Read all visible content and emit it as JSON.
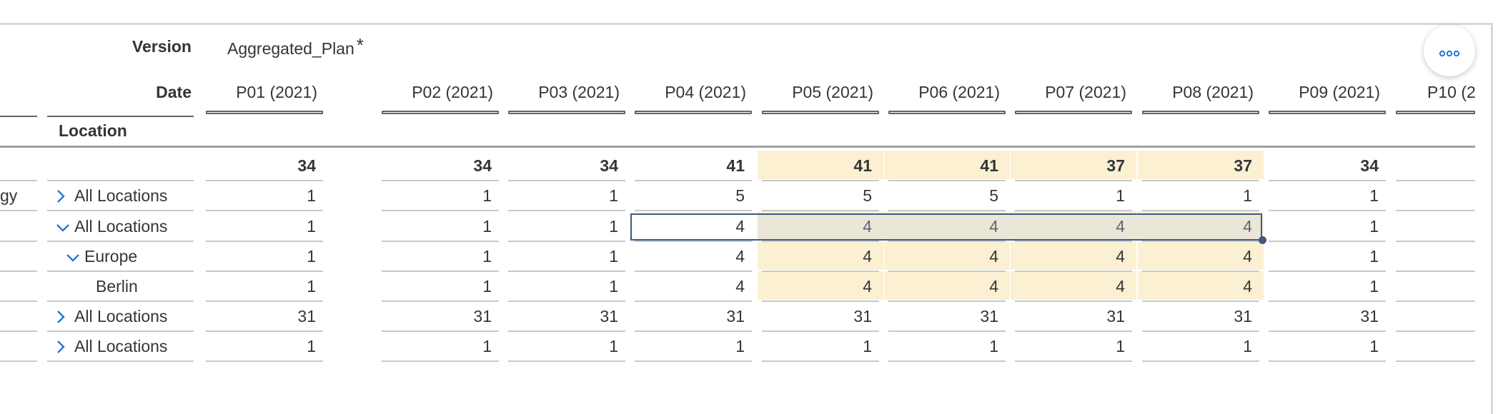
{
  "header": {
    "version_label": "Version",
    "version_value": "Aggregated_Plan",
    "version_star": "*",
    "date_label": "Date",
    "location_label": "Location"
  },
  "columns": [
    "P01 (2021)",
    "P02 (2021)",
    "P03 (2021)",
    "P04 (2021)",
    "P05 (2021)",
    "P06 (2021)",
    "P07 (2021)",
    "P08 (2021)",
    "P09 (2021)",
    "P10 (20"
  ],
  "rows": [
    {
      "prefix": "",
      "member": "",
      "toggle": "none",
      "bold": true,
      "values": [
        "34",
        "34",
        "34",
        "41",
        "41",
        "41",
        "37",
        "37",
        "34"
      ]
    },
    {
      "prefix": "gy",
      "member": "All Locations",
      "toggle": "collapsed",
      "values": [
        "1",
        "1",
        "1",
        "5",
        "5",
        "5",
        "1",
        "1",
        "1"
      ]
    },
    {
      "prefix": "",
      "member": "All Locations",
      "toggle": "expanded",
      "values": [
        "1",
        "1",
        "1",
        "4",
        "4",
        "4",
        "4",
        "4",
        "1"
      ]
    },
    {
      "prefix": "",
      "member": "Europe",
      "toggle": "expanded",
      "values": [
        "1",
        "1",
        "1",
        "4",
        "4",
        "4",
        "4",
        "4",
        "1"
      ]
    },
    {
      "prefix": "",
      "member": "Berlin",
      "toggle": "none",
      "values": [
        "1",
        "1",
        "1",
        "4",
        "4",
        "4",
        "4",
        "4",
        "1"
      ]
    },
    {
      "prefix": "",
      "member": "All Locations",
      "toggle": "collapsed",
      "values": [
        "31",
        "31",
        "31",
        "31",
        "31",
        "31",
        "31",
        "31",
        "31"
      ]
    },
    {
      "prefix": "",
      "member": "All Locations",
      "toggle": "collapsed",
      "values": [
        "1",
        "1",
        "1",
        "1",
        "1",
        "1",
        "1",
        "1",
        "1"
      ]
    }
  ],
  "colors": {
    "highlight": "#fbf0d2",
    "selection_band": "#ebe7d8",
    "selection_border": "#3d5a80",
    "accent": "#0a6ed1"
  },
  "icons": {
    "more": "more-options-icon",
    "expand": "chevron-right-icon",
    "collapse": "chevron-down-icon"
  }
}
